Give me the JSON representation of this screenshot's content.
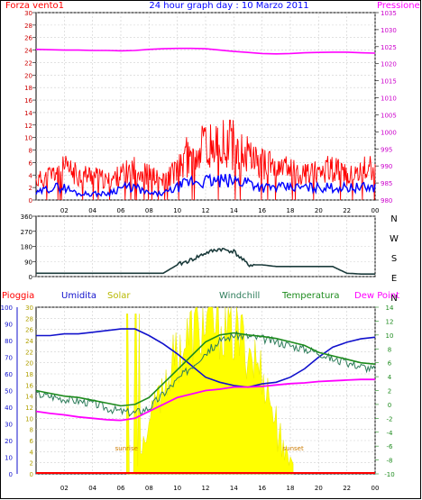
{
  "header": {
    "title": "24 hour graph day : 10 Marzo 2011",
    "left_label": "Forza vento1",
    "right_label": "Pressione"
  },
  "colors": {
    "wind_red": "#ff0000",
    "wind_blue": "#0000ff",
    "pressure": "#ff00ff",
    "direction": "#1b3b3b",
    "humidity": "#1111cc",
    "solar": "#ffff00",
    "windchill": "#2e7d5b",
    "temperature": "#1d8b1d",
    "dewpoint": "#ff00ff",
    "rain": "#ff0000",
    "grid": "#cfcfcf"
  },
  "x_axis": {
    "tick_labels": [
      "02",
      "04",
      "06",
      "08",
      "10",
      "12",
      "14",
      "16",
      "18",
      "20",
      "22",
      "00"
    ]
  },
  "chart_data": [
    {
      "type": "line",
      "title": "24 hour graph day : 10 Marzo 2011",
      "left_axis": {
        "label": "Forza vento1",
        "ticks": [
          "0",
          "2",
          "4",
          "6",
          "8",
          "10",
          "12",
          "14",
          "16",
          "18",
          "20",
          "22",
          "24",
          "26",
          "28",
          "30"
        ],
        "ylim": [
          0,
          30
        ]
      },
      "right_axis": {
        "label": "Pressione",
        "ticks": [
          "980",
          "985",
          "990",
          "995",
          "1000",
          "1005",
          "1010",
          "1015",
          "1020",
          "1025",
          "1030",
          "1035"
        ],
        "ylim": [
          980,
          1035
        ]
      },
      "x": [
        0,
        1,
        2,
        3,
        4,
        5,
        6,
        7,
        8,
        9,
        10,
        11,
        12,
        13,
        14,
        15,
        16,
        17,
        18,
        19,
        20,
        21,
        22,
        23,
        24
      ],
      "series": [
        {
          "role": "pressure",
          "values": [
            1024.2,
            1024.1,
            1024.0,
            1024.0,
            1023.9,
            1023.9,
            1023.8,
            1023.9,
            1024.2,
            1024.4,
            1024.5,
            1024.5,
            1024.4,
            1024.0,
            1023.6,
            1023.3,
            1023.0,
            1022.9,
            1023.0,
            1023.2,
            1023.3,
            1023.4,
            1023.4,
            1023.2,
            1023.1
          ]
        },
        {
          "role": "gust",
          "values": [
            3,
            4,
            5,
            4,
            4,
            3,
            4,
            5,
            4,
            3,
            5,
            7,
            9,
            8,
            8,
            7,
            6,
            5,
            5,
            4,
            5,
            5,
            4,
            5,
            5
          ]
        },
        {
          "role": "wind",
          "values": [
            1,
            2,
            2,
            1,
            1,
            1,
            2,
            2,
            1,
            1,
            2,
            3,
            3,
            3,
            3,
            3,
            2,
            2,
            2,
            2,
            2,
            2,
            2,
            2,
            2
          ]
        }
      ]
    },
    {
      "type": "line",
      "left_axis": {
        "ticks": [
          "0",
          "90",
          "180",
          "270",
          "360"
        ],
        "ylim": [
          0,
          360
        ]
      },
      "right_axis": {
        "ticks": [
          "N",
          "W",
          "S",
          "E",
          "N"
        ]
      },
      "x": [
        0,
        1,
        2,
        3,
        4,
        5,
        6,
        7,
        8,
        9,
        10,
        11,
        12,
        13,
        14,
        15,
        16,
        17,
        18,
        19,
        20,
        21,
        22,
        23,
        24
      ],
      "series": [
        {
          "role": "direction",
          "values": [
            20,
            20,
            20,
            20,
            20,
            20,
            20,
            20,
            20,
            20,
            70,
            100,
            140,
            165,
            150,
            70,
            70,
            60,
            60,
            60,
            60,
            60,
            20,
            15,
            15
          ]
        }
      ]
    },
    {
      "type": "line",
      "legend": [
        "Pioggia",
        "Umidita",
        "Solar",
        "Windchill",
        "Temperatura",
        "Dew Point"
      ],
      "left_axis_rain": {
        "ticks": [
          "0",
          "2",
          "4",
          "6",
          "8",
          "10",
          "12",
          "14",
          "16",
          "18",
          "20",
          "22",
          "24",
          "26",
          "28",
          "30"
        ],
        "ylim": [
          0,
          30
        ]
      },
      "left_axis_humidity": {
        "ticks": [
          "0",
          "10",
          "20",
          "30",
          "40",
          "50",
          "60",
          "70",
          "80",
          "90",
          "100"
        ],
        "ylim": [
          0,
          100
        ]
      },
      "right_axis_temperature": {
        "ticks": [
          "-10",
          "-8",
          "-6",
          "-4",
          "-2",
          "0",
          "2",
          "4",
          "6",
          "8",
          "10",
          "12",
          "14"
        ],
        "ylim": [
          -10,
          14
        ]
      },
      "annotations": [
        "sunrise",
        "sunset"
      ],
      "x": [
        0,
        1,
        2,
        3,
        4,
        5,
        6,
        7,
        8,
        9,
        10,
        11,
        12,
        13,
        14,
        15,
        16,
        17,
        18,
        19,
        20,
        21,
        22,
        23,
        24
      ],
      "series": [
        {
          "role": "rain",
          "values": [
            0,
            0,
            0,
            0,
            0,
            0,
            0,
            0,
            0,
            0,
            0,
            0,
            0,
            0,
            0,
            0,
            0,
            0,
            0,
            0,
            0,
            0,
            0,
            0,
            0
          ]
        },
        {
          "role": "humidity",
          "values": [
            83,
            83,
            84,
            84,
            85,
            86,
            87,
            87,
            83,
            78,
            72,
            65,
            58,
            55,
            53,
            52,
            54,
            55,
            58,
            63,
            70,
            76,
            79,
            81,
            82
          ]
        },
        {
          "role": "solar",
          "values": [
            0,
            0,
            0,
            0,
            0,
            0,
            0,
            0,
            80,
            140,
            190,
            220,
            235,
            240,
            225,
            200,
            160,
            90,
            25,
            0,
            0,
            0,
            0,
            0,
            0
          ]
        },
        {
          "role": "windchill",
          "values": [
            1.5,
            1.2,
            0.8,
            0.5,
            0.2,
            -0.5,
            -1.0,
            -1.2,
            -0.5,
            1.5,
            3.5,
            5.5,
            7.5,
            9.0,
            10.0,
            9.8,
            9.5,
            9.0,
            8.5,
            8.0,
            7.5,
            6.5,
            6.0,
            5.5,
            5.0
          ]
        },
        {
          "role": "temperature",
          "values": [
            2.0,
            1.6,
            1.2,
            1.0,
            0.6,
            0.2,
            -0.2,
            0.0,
            1.0,
            3.0,
            5.0,
            7.0,
            9.0,
            10.0,
            10.3,
            10.0,
            9.8,
            9.5,
            9.0,
            8.5,
            7.5,
            7.0,
            6.5,
            6.0,
            5.8
          ]
        },
        {
          "role": "dewpoint",
          "values": [
            -1.0,
            -1.3,
            -1.5,
            -1.8,
            -2.0,
            -2.2,
            -2.3,
            -2.0,
            -1.0,
            0.0,
            1.0,
            1.5,
            2.0,
            2.2,
            2.5,
            2.5,
            2.6,
            2.8,
            3.0,
            3.1,
            3.3,
            3.4,
            3.5,
            3.6,
            3.6
          ]
        }
      ]
    }
  ]
}
